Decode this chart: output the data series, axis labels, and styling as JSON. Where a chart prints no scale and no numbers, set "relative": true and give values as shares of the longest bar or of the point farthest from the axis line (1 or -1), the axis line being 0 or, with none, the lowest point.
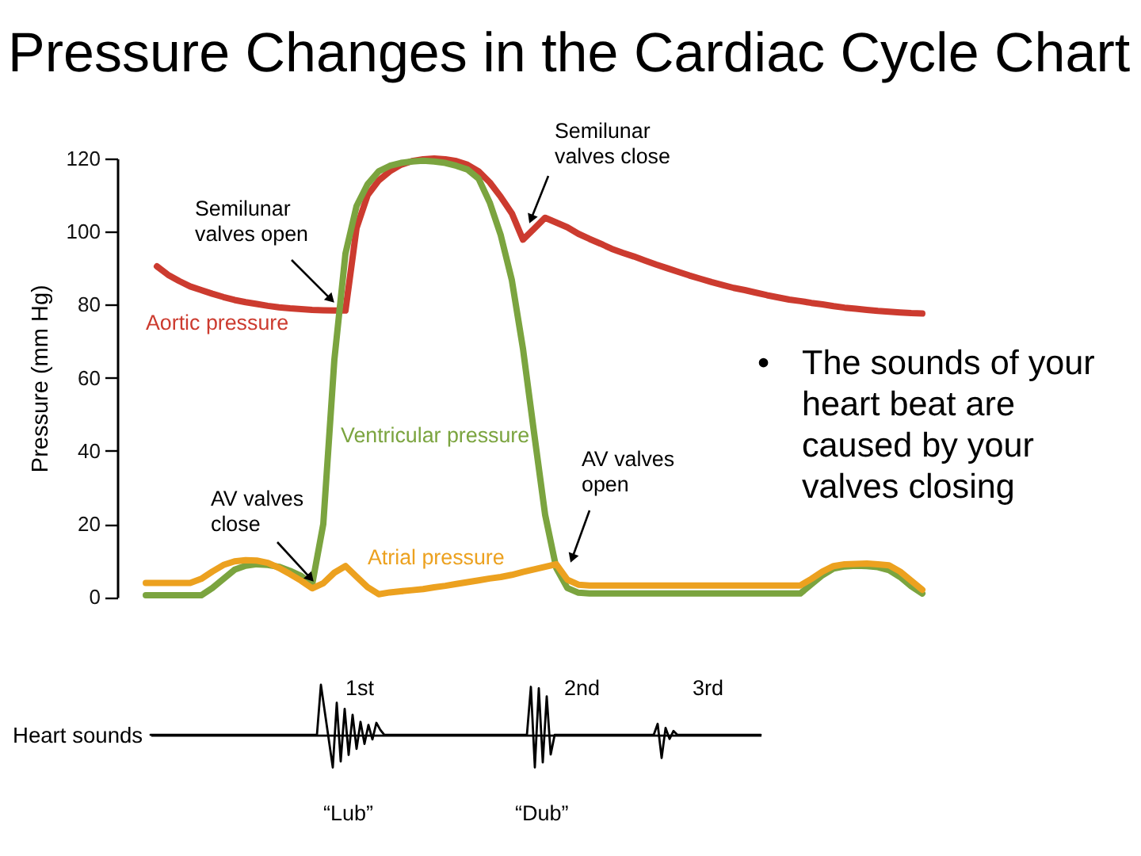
{
  "chart_data": [
    {
      "type": "line",
      "title": "Pressure Changes in the Cardiac Cycle Chart",
      "ylabel": "Pressure (mm Hg)",
      "categories": [
        null,
        null,
        null,
        null,
        null,
        null,
        null,
        null,
        null,
        null,
        null,
        null,
        null,
        null,
        null,
        null,
        null,
        null,
        null,
        null,
        null,
        null,
        null,
        null,
        null,
        null,
        null,
        null,
        null,
        null,
        null,
        null,
        null,
        null,
        null,
        null,
        null,
        null,
        null,
        null,
        null,
        null,
        null,
        null,
        null,
        null,
        null,
        null,
        null,
        null,
        null,
        null,
        null,
        null,
        null,
        null,
        null,
        null,
        null,
        null,
        null,
        null,
        null,
        null,
        null,
        null,
        null,
        null,
        null,
        null,
        null
      ],
      "ylim": [
        0,
        120
      ],
      "yticks": [
        0,
        20,
        40,
        60,
        80,
        100,
        120
      ],
      "tick_labels": "y",
      "series": [
        {
          "name": "Aortic pressure",
          "color": "#cc3b2f",
          "values": [
            null,
            90.5,
            88.2,
            86.5,
            85,
            84,
            83,
            82.1,
            81.3,
            80.7,
            80.2,
            79.7,
            79.3,
            79,
            78.8,
            78.6,
            78.5,
            78.4,
            78.4,
            101,
            110,
            114,
            116.5,
            118.3,
            119.3,
            119.8,
            120,
            119.8,
            119.3,
            118.3,
            116.5,
            113.5,
            109.5,
            105,
            97.8,
            100.8,
            103.8,
            102.5,
            101.2,
            99.4,
            98,
            96.7,
            95.3,
            94.2,
            93.2,
            92.1,
            91,
            90,
            89,
            88,
            87.1,
            86.2,
            85.4,
            84.6,
            84,
            83.3,
            82.6,
            82,
            81.4,
            81,
            80.5,
            80.1,
            79.6,
            79.2,
            78.9,
            78.6,
            78.3,
            78.1,
            77.9,
            77.7,
            77.6
          ]
        },
        {
          "name": "Ventricular pressure",
          "color": "#7ba43f",
          "values": [
            0.5,
            0.5,
            0.5,
            0.5,
            0.5,
            0.5,
            2.5,
            5,
            7.5,
            8.6,
            9,
            8.8,
            8.3,
            7.2,
            5.8,
            3.5,
            20,
            65,
            94,
            107,
            113,
            116.5,
            118,
            118.8,
            119.2,
            119.4,
            119.2,
            118.8,
            118,
            117,
            114.5,
            108,
            99,
            86.7,
            68,
            45,
            22.5,
            8,
            2.5,
            1.2,
            1,
            1,
            1,
            1,
            1,
            1,
            1,
            1,
            1,
            1,
            1,
            1,
            1,
            1,
            1,
            1,
            1,
            1,
            1,
            1,
            3.5,
            6,
            7.8,
            8.4,
            8.6,
            8.5,
            8.2,
            7.4,
            5.5,
            3,
            1
          ]
        },
        {
          "name": "Atrial pressure",
          "color": "#eca11f",
          "values": [
            3.9,
            3.9,
            3.9,
            3.9,
            3.9,
            5,
            7,
            8.8,
            9.8,
            10.1,
            10,
            9.4,
            8,
            6.3,
            4.5,
            2.4,
            3.8,
            6.7,
            8.5,
            5.6,
            2.7,
            0.8,
            1.3,
            1.6,
            1.9,
            2.2,
            2.7,
            3.1,
            3.6,
            4.1,
            4.6,
            5.1,
            5.5,
            6.1,
            6.9,
            7.6,
            8.3,
            9,
            4.8,
            3.4,
            3.2,
            3.2,
            3.2,
            3.2,
            3.2,
            3.2,
            3.2,
            3.2,
            3.2,
            3.2,
            3.2,
            3.2,
            3.2,
            3.2,
            3.2,
            3.2,
            3.2,
            3.2,
            3.2,
            3.2,
            5,
            7,
            8.5,
            9,
            9.1,
            9.2,
            9,
            8.7,
            7,
            4.5,
            2
          ]
        }
      ],
      "annotations": [
        "Semilunar valves open",
        "Semilunar valves close",
        "AV valves close",
        "AV valves open",
        "• The sounds of your heart beat are caused by your valves closing"
      ]
    },
    {
      "type": "line",
      "relative": true,
      "ylabel": "Heart sounds",
      "tick_labels": false,
      "categories": [
        null,
        null,
        null,
        null,
        null,
        null,
        null,
        null,
        null,
        null,
        null,
        null,
        null,
        null,
        null,
        null,
        null,
        null,
        null,
        null,
        null,
        null,
        null,
        null,
        null,
        null,
        null,
        null,
        null,
        null,
        null,
        null,
        null,
        null,
        null,
        null,
        null,
        null,
        null,
        null,
        null,
        null,
        null,
        null,
        null,
        null,
        null,
        null,
        null,
        null,
        null,
        null,
        null,
        null,
        null,
        null,
        null,
        null,
        null,
        null,
        null,
        null,
        null,
        null,
        null,
        null,
        null,
        null,
        null,
        null,
        null,
        null,
        null,
        null,
        null,
        null,
        null,
        null,
        null,
        null,
        null,
        null,
        null,
        null,
        null,
        null,
        null,
        null,
        null,
        null,
        null,
        null,
        null,
        null,
        null,
        null,
        null,
        null,
        null,
        null,
        null,
        null,
        null,
        null,
        null,
        null,
        null,
        null,
        null,
        null,
        null,
        null,
        null,
        null,
        null,
        null,
        null,
        null,
        null,
        null,
        null,
        null,
        null,
        null,
        null,
        null,
        null,
        null,
        null,
        null,
        null,
        null,
        null,
        null,
        null,
        null,
        null,
        null,
        null,
        null,
        null,
        null,
        null,
        null,
        null,
        null,
        null,
        null,
        null,
        null,
        null,
        null,
        null,
        null,
        null
      ],
      "series": [
        {
          "color": "#000000",
          "values": [
            0,
            0,
            0,
            0,
            0,
            0,
            0,
            0,
            0,
            0,
            0,
            0,
            0,
            0,
            0,
            0,
            0,
            0,
            0,
            0,
            0,
            0,
            0,
            0,
            0,
            0,
            0,
            0,
            0,
            0,
            0,
            0,
            0,
            0,
            0,
            0,
            0,
            0,
            0,
            0,
            0,
            0,
            0,
            1,
            0.45,
            -0.1,
            -0.65,
            0.64,
            -0.53,
            0.52,
            -0.4,
            0.4,
            -0.28,
            0.26,
            -0.18,
            0.2,
            -0.09,
            0.24,
            0.1,
            0,
            0,
            0,
            0,
            0,
            0,
            0,
            0,
            0,
            0,
            0,
            0,
            0,
            0,
            0,
            0,
            0,
            0,
            0,
            0,
            0,
            0,
            0,
            0,
            0,
            0,
            0,
            0,
            0,
            0,
            0,
            0,
            0,
            0,
            0,
            0,
            0,
            0.96,
            -0.65,
            0.93,
            -0.55,
            0.77,
            -0.39,
            0,
            0,
            0,
            0,
            0,
            0,
            0,
            0,
            0,
            0,
            0,
            0,
            0,
            0,
            0,
            0,
            0,
            0,
            0,
            0,
            0,
            0,
            0,
            0,
            0,
            0,
            0.22,
            -0.46,
            0.14,
            -0.08,
            0.08,
            0,
            0,
            0,
            0,
            0,
            0,
            0,
            0,
            0,
            0,
            0,
            0,
            0,
            0,
            0,
            0,
            0,
            0,
            0,
            0,
            0,
            0
          ]
        }
      ],
      "annotations": [
        "1st",
        "2nd",
        "3rd",
        "“Lub”",
        "“Dub”"
      ]
    }
  ]
}
